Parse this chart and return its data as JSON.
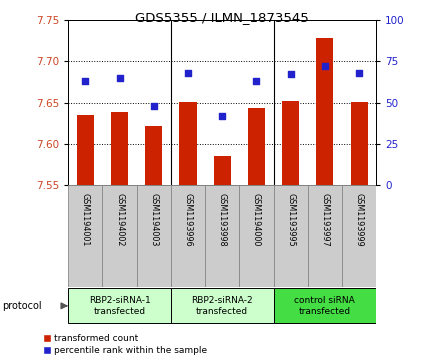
{
  "title": "GDS5355 / ILMN_1873545",
  "samples": [
    "GSM1194001",
    "GSM1194002",
    "GSM1194003",
    "GSM1193996",
    "GSM1193998",
    "GSM1194000",
    "GSM1193995",
    "GSM1193997",
    "GSM1193999"
  ],
  "red_values": [
    7.635,
    7.638,
    7.622,
    7.651,
    7.585,
    7.643,
    7.652,
    7.728,
    7.651
  ],
  "blue_values": [
    63,
    65,
    48,
    68,
    42,
    63,
    67,
    72,
    68
  ],
  "ylim_left": [
    7.55,
    7.75
  ],
  "ylim_right": [
    0,
    100
  ],
  "yticks_left": [
    7.55,
    7.6,
    7.65,
    7.7,
    7.75
  ],
  "yticks_right": [
    0,
    25,
    50,
    75,
    100
  ],
  "groups": [
    {
      "label": "RBP2-siRNA-1\ntransfected",
      "indices": [
        0,
        1,
        2
      ],
      "color": "#ccffcc"
    },
    {
      "label": "RBP2-siRNA-2\ntransfected",
      "indices": [
        3,
        4,
        5
      ],
      "color": "#ccffcc"
    },
    {
      "label": "control siRNA\ntransfected",
      "indices": [
        6,
        7,
        8
      ],
      "color": "#44dd44"
    }
  ],
  "bar_color": "#cc2200",
  "dot_color": "#2222cc",
  "bar_width": 0.5,
  "baseline": 7.55,
  "cell_color": "#cccccc",
  "cell_edge": "#888888"
}
